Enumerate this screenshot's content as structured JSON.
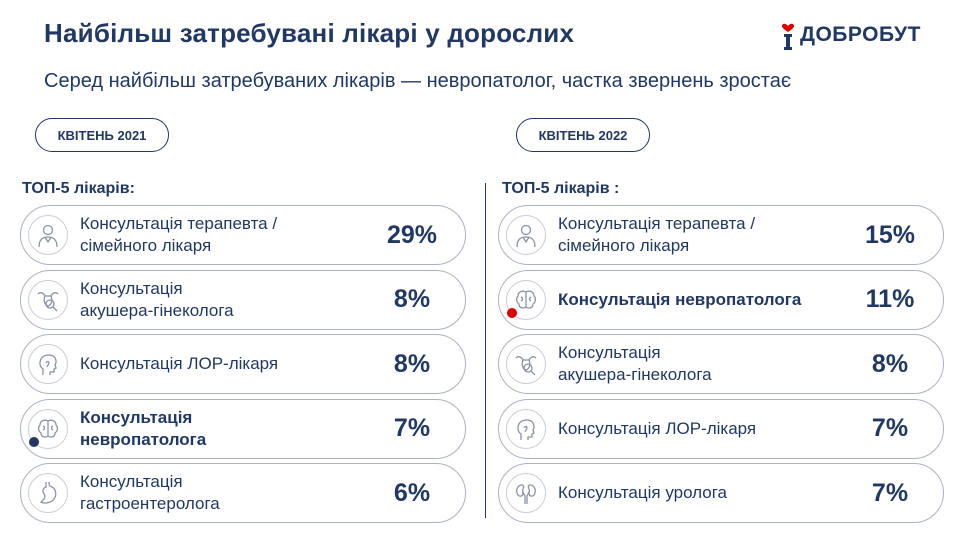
{
  "header": {
    "title": "Найбільш затребувані лікарі у дорослих",
    "subtitle": "Серед найбільш затребуваних лікарів — невропатолог, частка звернень зростає",
    "logo_text": "ДОБРОБУТ",
    "accent_color": "#1f3864",
    "highlight_red": "#e00000"
  },
  "left": {
    "period": "КВІТЕНЬ 2021",
    "top_label": "ТОП-5 лікарів:",
    "items": [
      {
        "line1": "Консультація терапевта /",
        "line2": "сімейного лікаря",
        "value": "29%",
        "icon": "doctor-icon"
      },
      {
        "line1": "Консультація",
        "line2": "акушера-гінеколога",
        "value": "8%",
        "icon": "uterus-icon"
      },
      {
        "line1": "Консультація ЛОР-лікаря",
        "line2": "",
        "value": "8%",
        "icon": "ent-head-icon"
      },
      {
        "line1": "Консультація",
        "line2": "невропатолога",
        "value": "7%",
        "icon": "brain-icon"
      },
      {
        "line1": "Консультація",
        "line2": "гастроентеролога",
        "value": "6%",
        "icon": "stomach-icon"
      }
    ]
  },
  "right": {
    "period": "КВІТЕНЬ 2022",
    "top_label": "ТОП-5 лікарів :",
    "items": [
      {
        "line1": "Консультація терапевта /",
        "line2": "сімейного лікаря",
        "value": "15%",
        "icon": "doctor-icon"
      },
      {
        "line1": "Консультація невропатолога",
        "line2": "",
        "value": "11%",
        "icon": "brain-icon"
      },
      {
        "line1": "Консультація",
        "line2": "акушера-гінеколога",
        "value": "8%",
        "icon": "uterus-icon"
      },
      {
        "line1": "Консультація ЛОР-лікаря",
        "line2": "",
        "value": "7%",
        "icon": "ent-head-icon"
      },
      {
        "line1": "Консультація уролога",
        "line2": "",
        "value": "7%",
        "icon": "kidneys-icon"
      }
    ]
  }
}
